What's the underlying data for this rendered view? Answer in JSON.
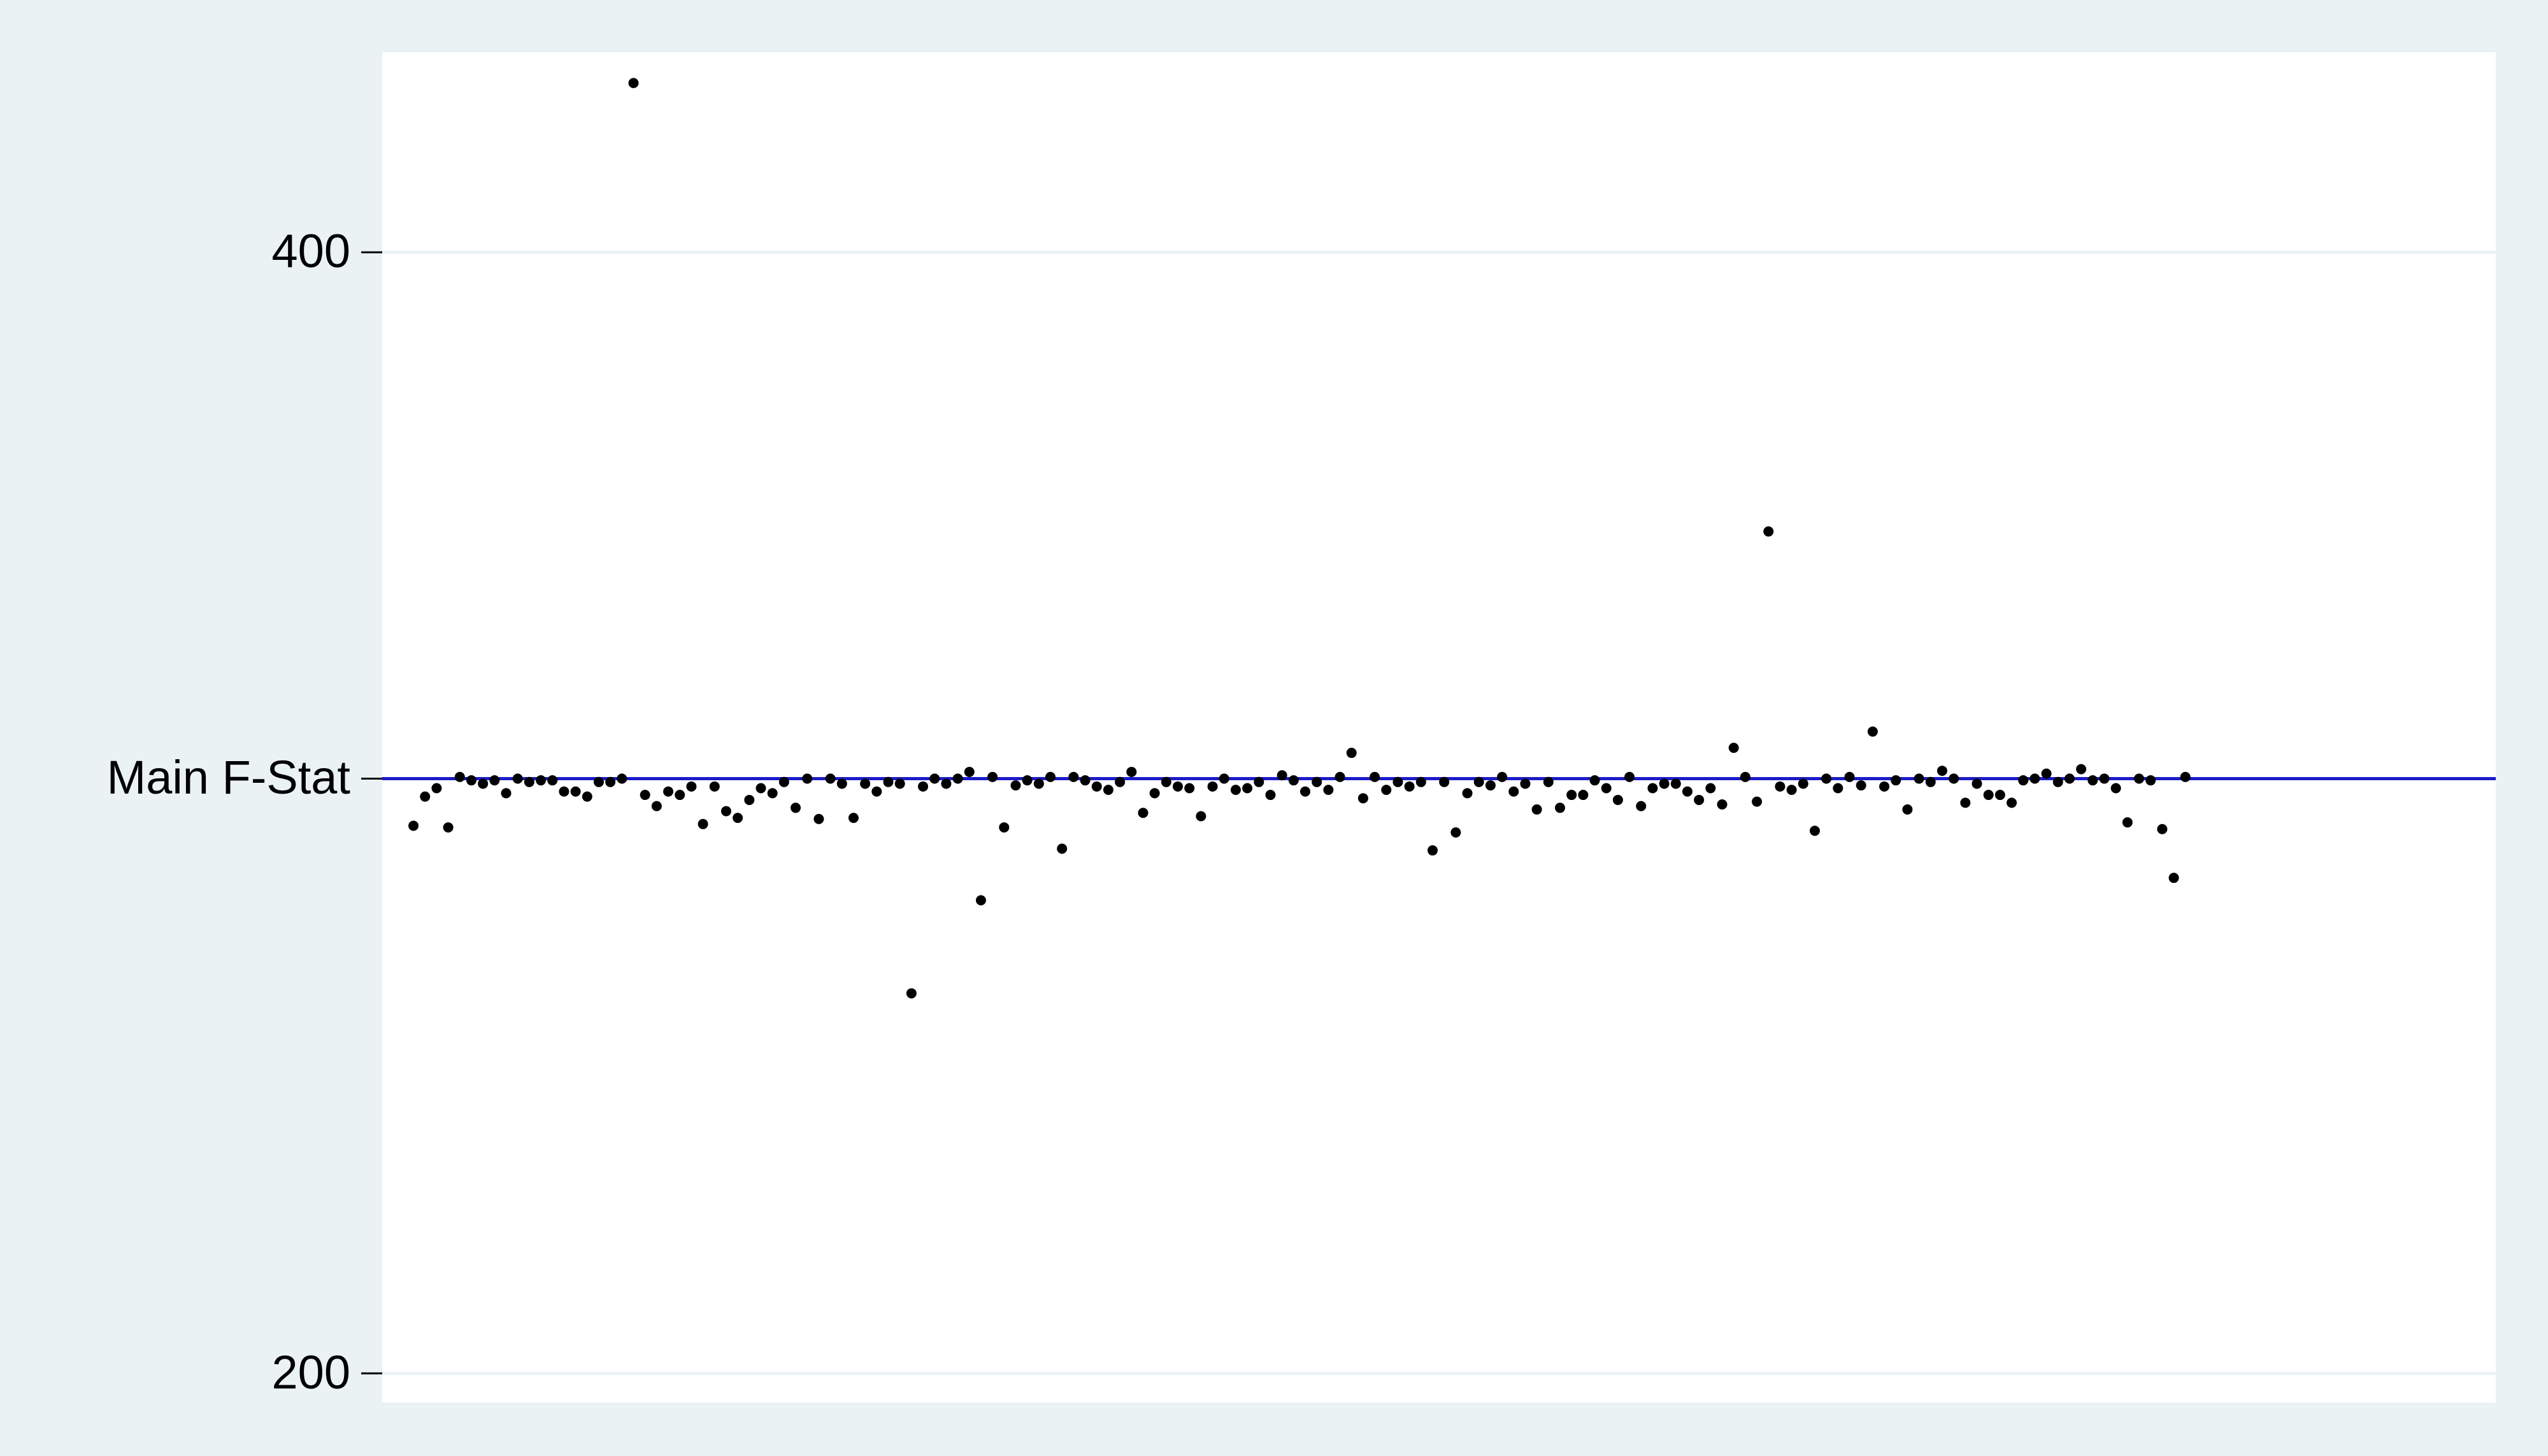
{
  "chart_data": {
    "type": "scatter",
    "x": [
      1,
      2,
      3,
      4,
      5,
      6,
      7,
      8,
      9,
      10,
      11,
      12,
      13,
      14,
      15,
      16,
      17,
      18,
      19,
      20,
      21,
      22,
      23,
      24,
      25,
      26,
      27,
      28,
      29,
      30,
      31,
      32,
      33,
      34,
      35,
      36,
      37,
      38,
      39,
      40,
      41,
      42,
      43,
      44,
      45,
      46,
      47,
      48,
      49,
      50,
      51,
      52,
      53,
      54,
      55,
      56,
      57,
      58,
      59,
      60,
      61,
      62,
      63,
      64,
      65,
      66,
      67,
      68,
      69,
      70,
      71,
      72,
      73,
      74,
      75,
      76,
      77,
      78,
      79,
      80,
      81,
      82,
      83,
      84,
      85,
      86,
      87,
      88,
      89,
      90,
      91,
      92,
      93,
      94,
      95,
      96,
      97,
      98,
      99,
      100,
      101,
      102,
      103,
      104,
      105,
      106,
      107,
      108,
      109,
      110,
      111,
      112,
      113,
      114,
      115,
      116,
      117,
      118,
      119,
      120,
      121,
      122,
      123,
      124,
      125,
      126,
      127,
      128,
      129,
      130,
      131,
      132,
      133,
      134,
      135,
      136,
      137,
      138,
      139,
      140,
      141,
      142,
      143,
      144,
      145,
      146,
      147,
      148,
      149,
      150,
      151,
      152,
      153,
      154
    ],
    "values": [
      297.7,
      302.9,
      304.4,
      297.4,
      306.4,
      305.8,
      305.2,
      305.8,
      303.5,
      306.1,
      305.5,
      305.8,
      305.8,
      303.8,
      303.8,
      302.9,
      305.5,
      305.5,
      306.1,
      430.2,
      303.2,
      301.2,
      303.8,
      303.2,
      304.7,
      298.0,
      304.7,
      300.3,
      299.1,
      302.3,
      304.4,
      303.5,
      305.5,
      300.9,
      306.1,
      298.9,
      306.1,
      305.2,
      299.1,
      305.2,
      303.8,
      305.5,
      305.2,
      267.8,
      304.7,
      306.1,
      305.2,
      306.1,
      307.3,
      284.4,
      306.4,
      297.4,
      304.9,
      305.8,
      305.2,
      306.4,
      293.6,
      306.4,
      305.8,
      304.7,
      304.1,
      305.5,
      307.3,
      300.0,
      303.5,
      305.5,
      304.7,
      304.4,
      299.4,
      304.7,
      306.1,
      304.1,
      304.4,
      305.5,
      303.2,
      306.7,
      305.8,
      303.8,
      305.5,
      304.1,
      306.4,
      310.7,
      302.6,
      306.4,
      304.1,
      305.5,
      304.7,
      305.5,
      293.3,
      305.5,
      296.5,
      303.5,
      305.5,
      304.9,
      306.4,
      303.8,
      305.2,
      300.6,
      305.5,
      300.9,
      303.2,
      303.2,
      305.8,
      304.4,
      302.3,
      306.4,
      301.2,
      304.4,
      305.2,
      305.2,
      303.8,
      302.3,
      304.4,
      301.5,
      311.6,
      306.4,
      302.0,
      350.2,
      304.7,
      304.1,
      305.2,
      296.8,
      306.1,
      304.4,
      306.4,
      304.9,
      314.5,
      304.7,
      305.8,
      300.6,
      306.1,
      305.5,
      307.5,
      306.1,
      301.8,
      305.2,
      303.2,
      303.2,
      301.8,
      305.8,
      306.1,
      307.0,
      305.5,
      306.1,
      307.8,
      305.8,
      306.1,
      304.4,
      298.3,
      306.1,
      305.8,
      297.1,
      288.4,
      306.4
    ],
    "color": "#000000",
    "xlim": [
      -1.7,
      180.8
    ],
    "ylim": [
      194.8,
      435.7
    ],
    "yticks": [
      200,
      {
        "value": 306.1,
        "label": "Main F-Stat"
      },
      400
    ],
    "grid": true,
    "grid_color": "#eaf2f3",
    "reference_color": "#1c1cc8"
  }
}
